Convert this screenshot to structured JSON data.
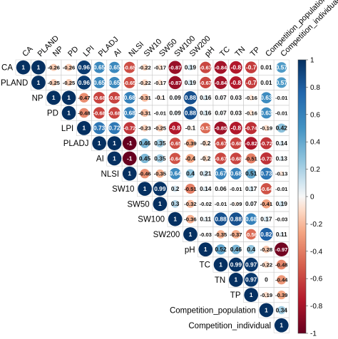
{
  "chart_data": {
    "type": "heatmap",
    "subtype": "upper-triangular correlation matrix (circle size and color = coefficient, value printed in cell)",
    "variables": [
      "CA",
      "PLAND",
      "NP",
      "PD",
      "LPI",
      "PLADJ",
      "AI",
      "NLSI",
      "SW10",
      "SW50",
      "SW100",
      "SW200",
      "pH",
      "TC",
      "TN",
      "TP",
      "Competition_population",
      "Competition_individual"
    ],
    "matrix": [
      [
        1,
        1,
        -0.26,
        -0.26,
        0.96,
        0.65,
        0.65,
        -0.65,
        -0.22,
        -0.17,
        -0.87,
        0.19,
        -0.67,
        -0.84,
        -0.8,
        -0.7,
        0.01,
        0.57
      ],
      [
        null,
        1,
        -0.25,
        -0.25,
        0.96,
        0.65,
        0.65,
        -0.65,
        -0.22,
        -0.17,
        -0.87,
        0.19,
        -0.67,
        -0.84,
        -0.8,
        -0.7,
        0.01,
        0.57
      ],
      [
        null,
        null,
        1,
        1,
        -0.47,
        -0.68,
        -0.68,
        0.68,
        -0.31,
        -0.1,
        0.09,
        0.88,
        0.16,
        0.07,
        0.03,
        -0.16,
        0.63,
        -0.01
      ],
      [
        null,
        null,
        null,
        1,
        -0.48,
        -0.68,
        -0.68,
        0.68,
        -0.31,
        -0.01,
        0.09,
        0.88,
        0.16,
        0.07,
        0.03,
        -0.16,
        0.63,
        -0.01
      ],
      [
        null,
        null,
        null,
        null,
        1,
        0.73,
        0.72,
        -0.72,
        -0.23,
        -0.25,
        -0.8,
        -0.1,
        -0.57,
        -0.85,
        -0.8,
        -0.74,
        -0.19,
        0.42
      ],
      [
        null,
        null,
        null,
        null,
        null,
        1,
        1,
        -1,
        0.46,
        0.35,
        -0.65,
        -0.39,
        -0.2,
        -0.67,
        -0.68,
        -0.82,
        -0.72,
        0.14
      ],
      [
        null,
        null,
        null,
        null,
        null,
        null,
        1,
        -1,
        0.45,
        0.35,
        -0.64,
        -0.4,
        -0.2,
        -0.67,
        -0.68,
        -0.51,
        -0.73,
        0.13
      ],
      [
        null,
        null,
        null,
        null,
        null,
        null,
        null,
        1,
        -0.46,
        -0.35,
        0.64,
        0.4,
        0.21,
        0.67,
        0.68,
        0.51,
        0.73,
        -0.13
      ],
      [
        null,
        null,
        null,
        null,
        null,
        null,
        null,
        null,
        1,
        0.99,
        0.2,
        -0.51,
        0.14,
        0.06,
        -0.01,
        0.17,
        -0.64,
        -0.01
      ],
      [
        null,
        null,
        null,
        null,
        null,
        null,
        null,
        null,
        null,
        1,
        0.3,
        -0.32,
        -0.02,
        -0.01,
        -0.09,
        0.07,
        -0.41,
        0.19
      ],
      [
        null,
        null,
        null,
        null,
        null,
        null,
        null,
        null,
        null,
        null,
        1,
        -0.36,
        0.11,
        0.88,
        0.88,
        0.68,
        0.17,
        -0.03
      ],
      [
        null,
        null,
        null,
        null,
        null,
        null,
        null,
        null,
        null,
        null,
        null,
        1,
        -0.03,
        -0.35,
        -0.37,
        -0.56,
        0.82,
        0.11
      ],
      [
        null,
        null,
        null,
        null,
        null,
        null,
        null,
        null,
        null,
        null,
        null,
        null,
        1,
        0.52,
        0.46,
        0.4,
        -0.28,
        -0.97
      ],
      [
        null,
        null,
        null,
        null,
        null,
        null,
        null,
        null,
        null,
        null,
        null,
        null,
        null,
        1,
        0.99,
        0.97,
        -0.22,
        -0.48
      ],
      [
        null,
        null,
        null,
        null,
        null,
        null,
        null,
        null,
        null,
        null,
        null,
        null,
        null,
        null,
        1,
        0.97,
        0,
        -0.44
      ],
      [
        null,
        null,
        null,
        null,
        null,
        null,
        null,
        null,
        null,
        null,
        null,
        null,
        null,
        null,
        null,
        1,
        -0.19,
        -0.39
      ],
      [
        null,
        null,
        null,
        null,
        null,
        null,
        null,
        null,
        null,
        null,
        null,
        null,
        null,
        null,
        null,
        null,
        1,
        0.34
      ],
      [
        null,
        null,
        null,
        null,
        null,
        null,
        null,
        null,
        null,
        null,
        null,
        null,
        null,
        null,
        null,
        null,
        null,
        1
      ]
    ],
    "colorbar": {
      "range": [
        -1,
        1
      ],
      "ticks": [
        1,
        0.8,
        0.6,
        0.4,
        0.2,
        0,
        -0.2,
        -0.4,
        -0.6,
        -0.8,
        -1
      ],
      "colors": {
        "positive": "#053061",
        "mid": "#f7f7f7",
        "negative": "#67001f"
      },
      "placement": "right"
    },
    "grid": true,
    "legend": "colorbar-right",
    "title": "",
    "xlabel": "",
    "ylabel": ""
  }
}
